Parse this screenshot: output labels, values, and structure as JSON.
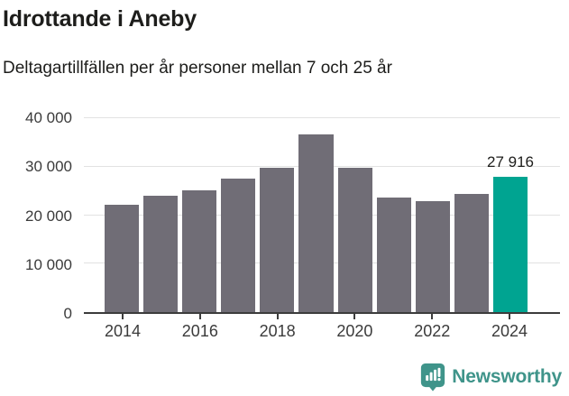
{
  "header": {
    "title": "Idrottande i Aneby",
    "subtitle": "Deltagartillfällen per år personer mellan 7 och 25 år"
  },
  "chart_data": {
    "type": "bar",
    "title": "Idrottande i Aneby",
    "subtitle": "Deltagartillfällen per år personer mellan 7 och 25 år",
    "categories": [
      "2014",
      "2015",
      "2016",
      "2017",
      "2018",
      "2019",
      "2020",
      "2021",
      "2022",
      "2023",
      "2024"
    ],
    "values": [
      22200,
      24000,
      25100,
      27600,
      29700,
      36700,
      29800,
      23700,
      22800,
      24300,
      27916
    ],
    "highlight_index": 10,
    "highlight_label": "27 916",
    "bar_color": "#706d76",
    "highlight_color": "#00a491",
    "ylim": [
      0,
      40000
    ],
    "y_ticks": [
      {
        "value": 0,
        "label": "0"
      },
      {
        "value": 10000,
        "label": "10 000"
      },
      {
        "value": 20000,
        "label": "20 000"
      },
      {
        "value": 30000,
        "label": "30 000"
      },
      {
        "value": 40000,
        "label": "40 000"
      }
    ],
    "x_tick_indices": [
      0,
      2,
      4,
      6,
      8,
      10
    ],
    "xlabel": "",
    "ylabel": "",
    "grid": true,
    "legend": false,
    "axis_color": "#3c3c3c",
    "gridline_color": "#e2e2e2",
    "tick_label_color": "#3b3b3b"
  },
  "footer": {
    "brand": "Newsworthy",
    "brand_color": "#3f948a",
    "logo_icon": "newsworthy-chart-bubble-icon"
  }
}
